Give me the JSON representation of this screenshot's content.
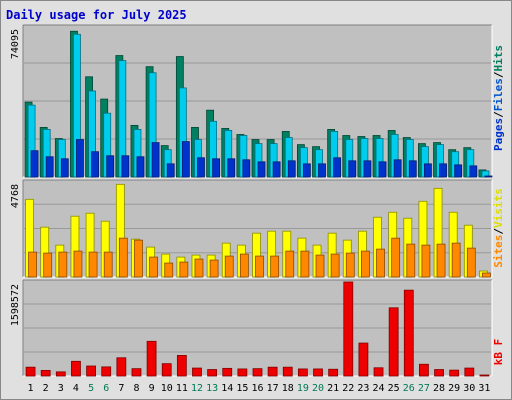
{
  "title": "Daily usage for July 2025",
  "days": [
    "1",
    "2",
    "3",
    "4",
    "5",
    "6",
    "7",
    "8",
    "9",
    "10",
    "11",
    "12",
    "13",
    "14",
    "15",
    "16",
    "17",
    "18",
    "19",
    "20",
    "21",
    "22",
    "23",
    "24",
    "25",
    "26",
    "27",
    "28",
    "29",
    "30",
    "31"
  ],
  "weekend_days": [
    "5",
    "6",
    "12",
    "13",
    "19",
    "20",
    "26",
    "27"
  ],
  "colors": {
    "background": "#e0e0e0",
    "plot_background": "#c0c0c0",
    "gridline": "#999999",
    "title": "#0000cc",
    "day_label": "#000000",
    "weekend_label": "#007a55",
    "hits": "#008060",
    "files": "#00ccee",
    "pages": "#0033cc",
    "visits": "#ffff00",
    "sites": "#ff8800",
    "kbytes": "#ee0000"
  },
  "chart_data": [
    {
      "type": "bar",
      "categories": [
        "1",
        "2",
        "3",
        "4",
        "5",
        "6",
        "7",
        "8",
        "9",
        "10",
        "11",
        "12",
        "13",
        "14",
        "15",
        "16",
        "17",
        "18",
        "19",
        "20",
        "21",
        "22",
        "23",
        "24",
        "25",
        "26",
        "27",
        "28",
        "29",
        "30",
        "31"
      ],
      "ylabel_parts": [
        "Pages",
        "Files",
        "Hits"
      ],
      "max_label": "74095",
      "ylim": [
        0,
        74095
      ],
      "grid": true,
      "series": [
        {
          "name": "Hits",
          "values": [
            37000,
            24500,
            19000,
            72000,
            49500,
            38500,
            60000,
            25500,
            54500,
            15500,
            59500,
            24500,
            33000,
            24000,
            21000,
            18500,
            18500,
            22500,
            16000,
            15000,
            23500,
            20500,
            20000,
            20500,
            23000,
            19500,
            16500,
            17000,
            13500,
            14500,
            3500
          ]
        },
        {
          "name": "Files",
          "values": [
            35500,
            23500,
            18500,
            70500,
            42500,
            31500,
            57500,
            23500,
            51500,
            13500,
            44000,
            18500,
            27500,
            23000,
            20500,
            16500,
            16500,
            19500,
            14500,
            13500,
            22500,
            18500,
            19000,
            19000,
            21000,
            18500,
            15000,
            16000,
            12500,
            13500,
            3000
          ]
        },
        {
          "name": "Pages",
          "values": [
            13000,
            10000,
            9000,
            18500,
            12500,
            10500,
            10500,
            10000,
            17000,
            6500,
            17500,
            9500,
            9000,
            9000,
            8500,
            7500,
            7500,
            8000,
            6500,
            6500,
            9500,
            8000,
            8000,
            7500,
            8500,
            8000,
            6500,
            6500,
            6000,
            5500,
            500
          ]
        }
      ]
    },
    {
      "type": "bar",
      "categories": [
        "1",
        "2",
        "3",
        "4",
        "5",
        "6",
        "7",
        "8",
        "9",
        "10",
        "11",
        "12",
        "13",
        "14",
        "15",
        "16",
        "17",
        "18",
        "19",
        "20",
        "21",
        "22",
        "23",
        "24",
        "25",
        "26",
        "27",
        "28",
        "29",
        "30",
        "31"
      ],
      "ylabel_parts": [
        "Sites",
        "Visits"
      ],
      "max_label": "4768",
      "ylim": [
        0,
        4768
      ],
      "grid": true,
      "series": [
        {
          "name": "Visits",
          "values": [
            3900,
            2500,
            1600,
            3050,
            3200,
            2800,
            4650,
            1900,
            1500,
            1150,
            1000,
            1100,
            1100,
            1700,
            1600,
            2200,
            2300,
            2300,
            1950,
            1600,
            2200,
            1850,
            2300,
            3000,
            3250,
            2950,
            3800,
            4450,
            3250,
            2600,
            300
          ]
        },
        {
          "name": "Sites",
          "values": [
            1250,
            1200,
            1250,
            1300,
            1250,
            1250,
            1950,
            1850,
            1000,
            700,
            750,
            900,
            850,
            1050,
            1150,
            1050,
            1050,
            1300,
            1300,
            1100,
            1150,
            1200,
            1300,
            1400,
            1950,
            1650,
            1600,
            1650,
            1700,
            1450,
            200
          ]
        }
      ]
    },
    {
      "type": "bar",
      "categories": [
        "1",
        "2",
        "3",
        "4",
        "5",
        "6",
        "7",
        "8",
        "9",
        "10",
        "11",
        "12",
        "13",
        "14",
        "15",
        "16",
        "17",
        "18",
        "19",
        "20",
        "21",
        "22",
        "23",
        "24",
        "25",
        "26",
        "27",
        "28",
        "29",
        "30",
        "31"
      ],
      "ylabel_parts": [
        "KBytes"
      ],
      "ylabel_text": "kB F",
      "max_label": "1598572",
      "ylim": [
        0,
        1598572
      ],
      "grid": true,
      "series": [
        {
          "name": "KBytes",
          "values": [
            150000,
            95000,
            70000,
            250000,
            170000,
            155000,
            310000,
            125000,
            590000,
            210000,
            350000,
            135000,
            110000,
            130000,
            120000,
            125000,
            150000,
            150000,
            120000,
            120000,
            115000,
            1598572,
            560000,
            140000,
            1160000,
            1460000,
            200000,
            110000,
            100000,
            135000,
            15000
          ]
        }
      ]
    }
  ]
}
